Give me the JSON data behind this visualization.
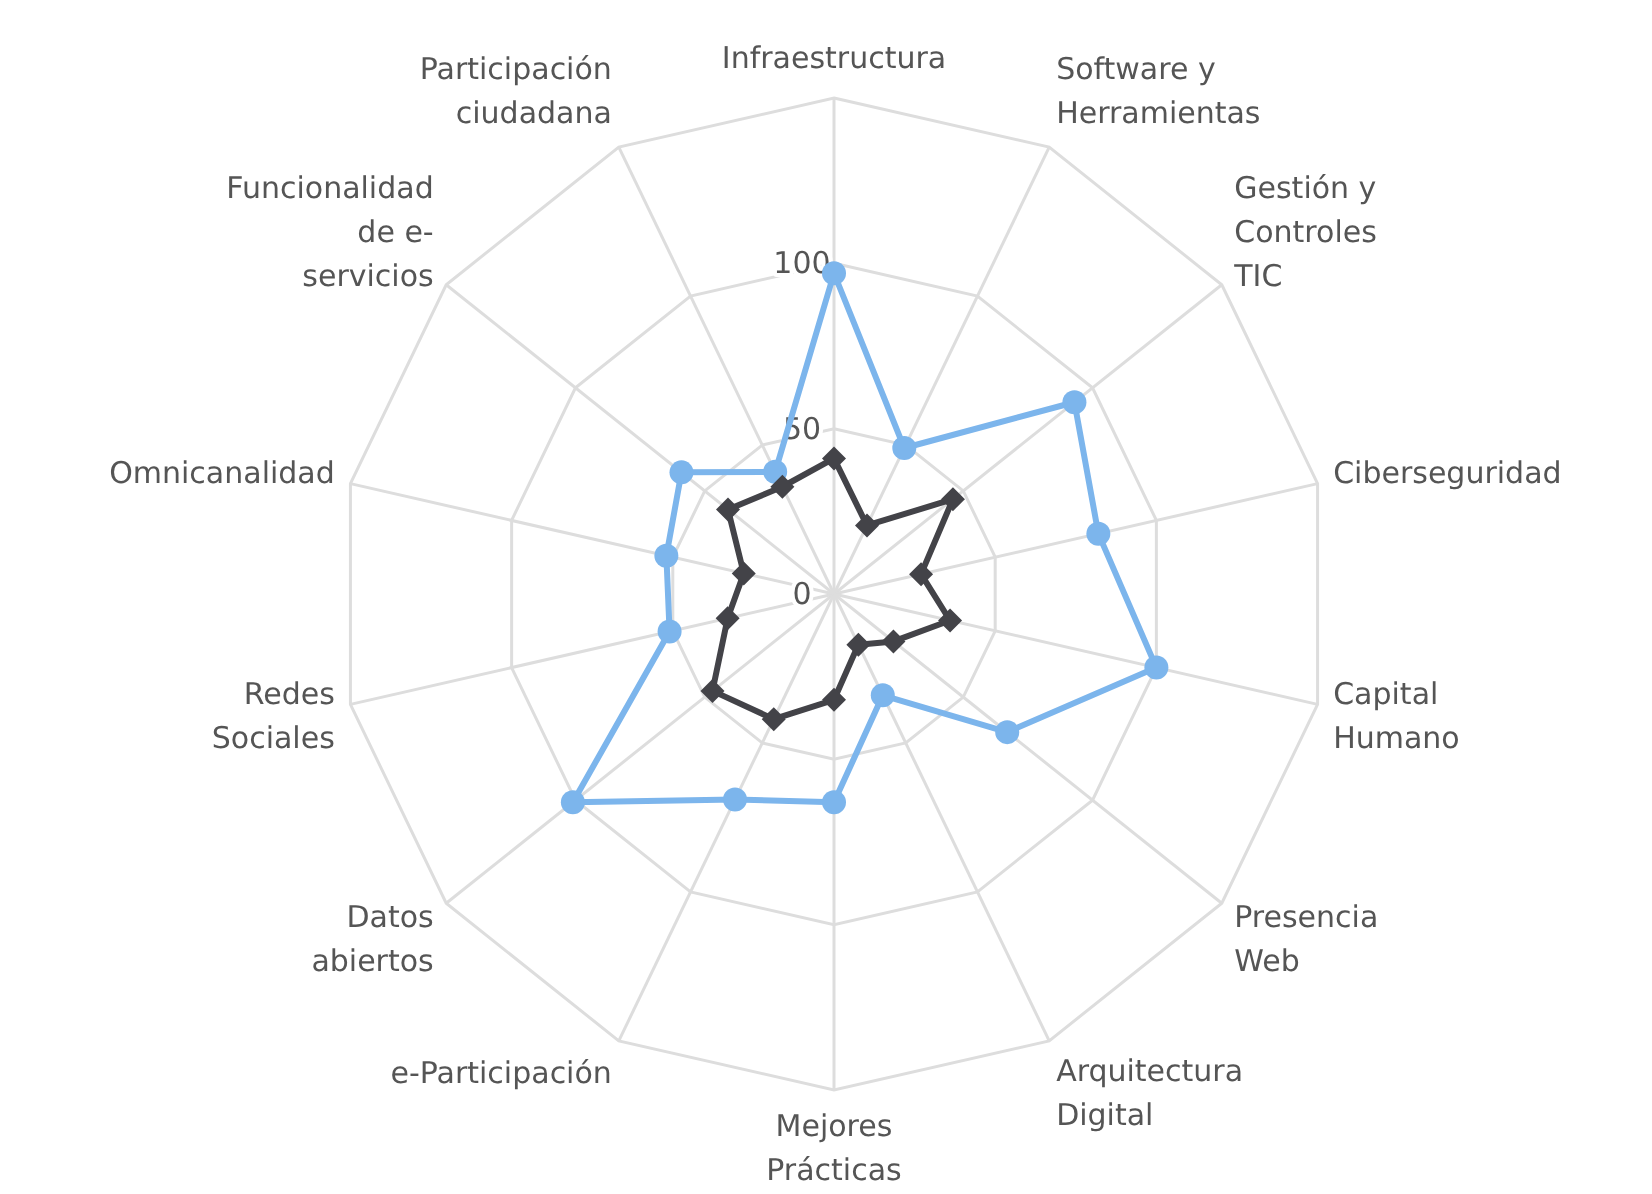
{
  "chart_data": {
    "type": "radar",
    "categories": [
      "Infraestructura",
      "Software y Herramientas",
      "Gestión y Controles TIC",
      "Ciberseguridad",
      "Capital Humano",
      "Presencia Web",
      "Arquitectura Digital",
      "Mejores Prácticas",
      "e-Participación",
      "Datos abiertos",
      "Redes Sociales",
      "Omnicanalidad",
      "Funcionalidad de e-servicios",
      "Participación ciudadana"
    ],
    "ylim": [
      0,
      150
    ],
    "yticks": [
      0,
      50,
      100
    ],
    "grid": true,
    "legend": false,
    "series": [
      {
        "color": "#7cb5ec",
        "marker": "circle",
        "values": [
          97,
          49,
          93,
          82,
          100,
          67,
          34,
          63,
          69,
          101,
          51,
          52,
          59,
          41
        ]
      },
      {
        "color": "#434348",
        "marker": "diamond",
        "values": [
          41,
          23,
          46,
          27,
          36,
          23,
          17,
          32,
          42,
          47,
          33,
          28,
          41,
          36
        ]
      }
    ]
  }
}
